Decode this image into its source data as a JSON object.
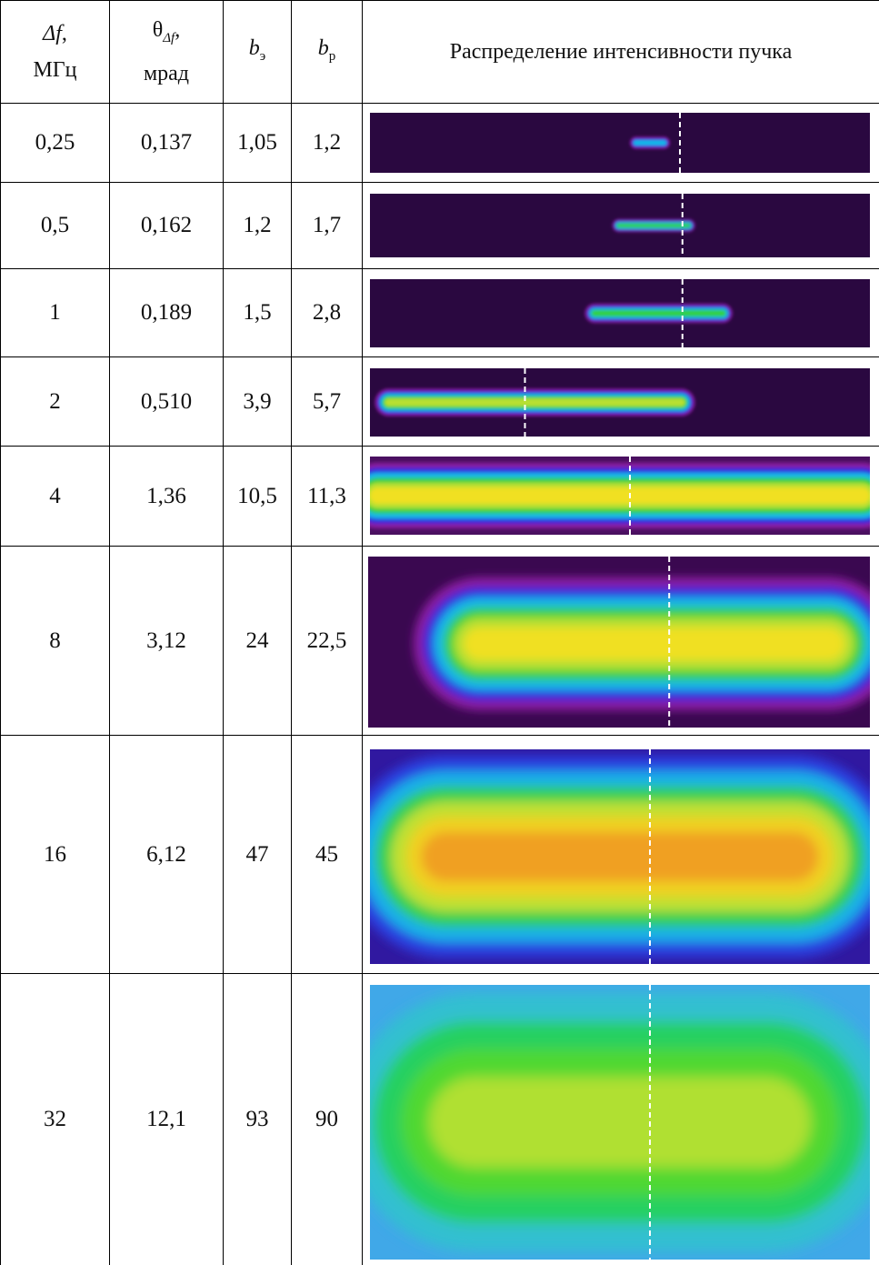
{
  "header": {
    "cells": [
      {
        "main": "Δf",
        "suffix": ",",
        "unit": "МГц"
      },
      {
        "main": "θ",
        "sub": "Δf",
        "suffix": ",",
        "unit": "мрад"
      },
      {
        "main": "b",
        "sub": "э"
      },
      {
        "main": "b",
        "sub": "р"
      },
      {
        "text": "Распределение интенсивности пучка"
      }
    ]
  },
  "table": {
    "rows": [
      [
        "0,25",
        "0,137",
        "1,05",
        "1,2"
      ],
      [
        "0,5",
        "0,162",
        "1,2",
        "1,7"
      ],
      [
        "1",
        "0,189",
        "1,5",
        "2,8"
      ],
      [
        "2",
        "0,510",
        "3,9",
        "5,7"
      ],
      [
        "4",
        "1,36",
        "10,5",
        "11,3"
      ],
      [
        "8",
        "3,12",
        "24",
        "22,5"
      ],
      [
        "16",
        "6,12",
        "47",
        "45"
      ],
      [
        "32",
        "12,1",
        "93",
        "90"
      ]
    ]
  }
}
